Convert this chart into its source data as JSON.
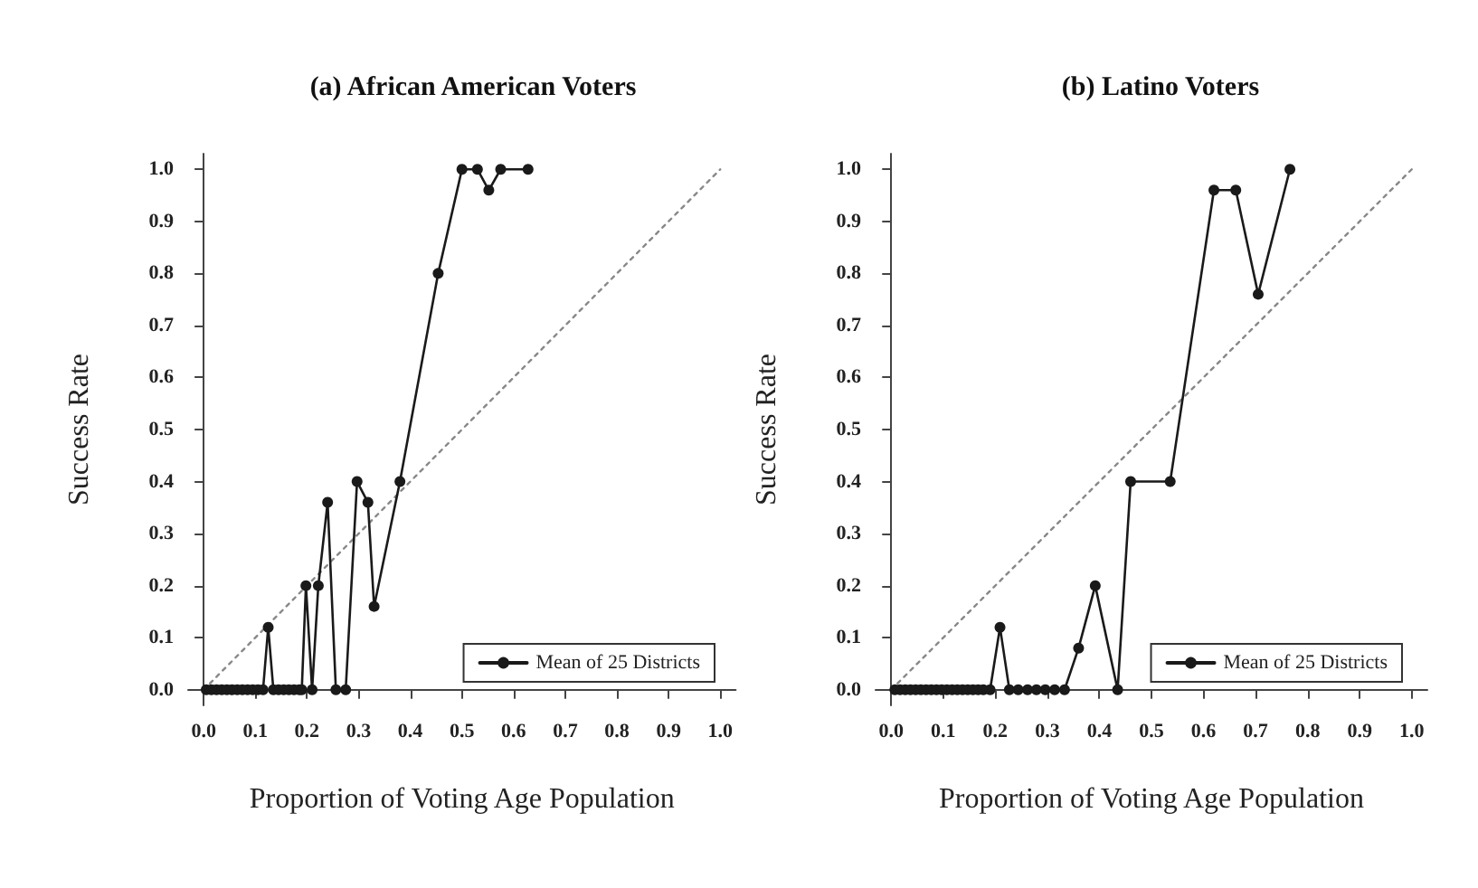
{
  "chart_data": [
    {
      "type": "line",
      "title": "(a) African American Voters",
      "xlabel": "Proportion of Voting Age Population",
      "ylabel": "Success Rate",
      "xlim": [
        -0.03,
        1.03
      ],
      "ylim": [
        -0.03,
        1.03
      ],
      "xticks": [
        {
          "value": 0,
          "label": "0.0"
        },
        {
          "value": 0.1,
          "label": "0.1"
        },
        {
          "value": 0.2,
          "label": "0.2"
        },
        {
          "value": 0.3,
          "label": "0.3"
        },
        {
          "value": 0.4,
          "label": "0.4"
        },
        {
          "value": 0.5,
          "label": "0.5"
        },
        {
          "value": 0.6,
          "label": "0.6"
        },
        {
          "value": 0.7,
          "label": "0.7"
        },
        {
          "value": 0.8,
          "label": "0.8"
        },
        {
          "value": 0.9,
          "label": "0.9"
        },
        {
          "value": 1,
          "label": "1.0"
        }
      ],
      "yticks": [
        {
          "value": 0,
          "label": "0.0"
        },
        {
          "value": 0.1,
          "label": "0.1"
        },
        {
          "value": 0.2,
          "label": "0.2"
        },
        {
          "value": 0.3,
          "label": "0.3"
        },
        {
          "value": 0.4,
          "label": "0.4"
        },
        {
          "value": 0.5,
          "label": "0.5"
        },
        {
          "value": 0.6,
          "label": "0.6"
        },
        {
          "value": 0.7,
          "label": "0.7"
        },
        {
          "value": 0.8,
          "label": "0.8"
        },
        {
          "value": 0.9,
          "label": "0.9"
        },
        {
          "value": 1,
          "label": "1.0"
        }
      ],
      "legend": "bottom right",
      "series": [
        {
          "name": "Mean of 25 Districts",
          "color": "#1a1a1a",
          "marker": "circle",
          "line_style": "solid",
          "x": [
            0.005,
            0.015,
            0.025,
            0.035,
            0.045,
            0.055,
            0.065,
            0.075,
            0.085,
            0.095,
            0.105,
            0.115,
            0.125,
            0.135,
            0.145,
            0.155,
            0.165,
            0.175,
            0.185,
            0.19,
            0.198,
            0.21,
            0.222,
            0.24,
            0.256,
            0.275,
            0.297,
            0.318,
            0.33,
            0.38,
            0.454,
            0.5,
            0.53,
            0.552,
            0.575,
            0.628
          ],
          "values": [
            0,
            0,
            0,
            0,
            0,
            0,
            0,
            0,
            0,
            0,
            0,
            0,
            0.12,
            0,
            0,
            0,
            0,
            0,
            0,
            0,
            0.2,
            0,
            0.2,
            0.36,
            0,
            0,
            0.4,
            0.36,
            0.16,
            0.4,
            0.8,
            1,
            1,
            0.96,
            1,
            1
          ]
        },
        {
          "type": "line",
          "color": "#888888",
          "marker": "none",
          "line_style": "dotted",
          "x": [
            0,
            1
          ],
          "values": [
            0,
            1
          ]
        }
      ]
    },
    {
      "type": "line",
      "title": "(b) Latino Voters",
      "xlabel": "Proportion of Voting Age Population",
      "ylabel": "Success Rate",
      "xlim": [
        -0.03,
        1.03
      ],
      "ylim": [
        -0.03,
        1.03
      ],
      "xticks": [
        {
          "value": 0,
          "label": "0.0"
        },
        {
          "value": 0.1,
          "label": "0.1"
        },
        {
          "value": 0.2,
          "label": "0.2"
        },
        {
          "value": 0.3,
          "label": "0.3"
        },
        {
          "value": 0.4,
          "label": "0.4"
        },
        {
          "value": 0.5,
          "label": "0.5"
        },
        {
          "value": 0.6,
          "label": "0.6"
        },
        {
          "value": 0.7,
          "label": "0.7"
        },
        {
          "value": 0.8,
          "label": "0.8"
        },
        {
          "value": 0.9,
          "label": "0.9"
        },
        {
          "value": 1,
          "label": "1.0"
        }
      ],
      "yticks": [
        {
          "value": 0,
          "label": "0.0"
        },
        {
          "value": 0.1,
          "label": "0.1"
        },
        {
          "value": 0.2,
          "label": "0.2"
        },
        {
          "value": 0.3,
          "label": "0.3"
        },
        {
          "value": 0.4,
          "label": "0.4"
        },
        {
          "value": 0.5,
          "label": "0.5"
        },
        {
          "value": 0.6,
          "label": "0.6"
        },
        {
          "value": 0.7,
          "label": "0.7"
        },
        {
          "value": 0.8,
          "label": "0.8"
        },
        {
          "value": 0.9,
          "label": "0.9"
        },
        {
          "value": 1,
          "label": "1.0"
        }
      ],
      "legend": "bottom right",
      "series": [
        {
          "name": "Mean of 25 Districts",
          "color": "#1a1a1a",
          "marker": "circle",
          "line_style": "solid",
          "x": [
            0.007,
            0.017,
            0.027,
            0.037,
            0.047,
            0.057,
            0.067,
            0.077,
            0.087,
            0.097,
            0.107,
            0.117,
            0.127,
            0.137,
            0.147,
            0.157,
            0.167,
            0.177,
            0.19,
            0.209,
            0.227,
            0.244,
            0.262,
            0.279,
            0.296,
            0.314,
            0.333,
            0.36,
            0.392,
            0.435,
            0.46,
            0.536,
            0.62,
            0.662,
            0.705,
            0.766
          ],
          "values": [
            0,
            0,
            0,
            0,
            0,
            0,
            0,
            0,
            0,
            0,
            0,
            0,
            0,
            0,
            0,
            0,
            0,
            0,
            0,
            0.12,
            0,
            0,
            0,
            0,
            0,
            0,
            0,
            0.08,
            0.2,
            0,
            0.4,
            0.4,
            0.96,
            0.96,
            0.76,
            1
          ]
        },
        {
          "type": "line",
          "color": "#888888",
          "marker": "none",
          "line_style": "dotted",
          "x": [
            0,
            1
          ],
          "values": [
            0,
            1
          ]
        }
      ]
    }
  ]
}
